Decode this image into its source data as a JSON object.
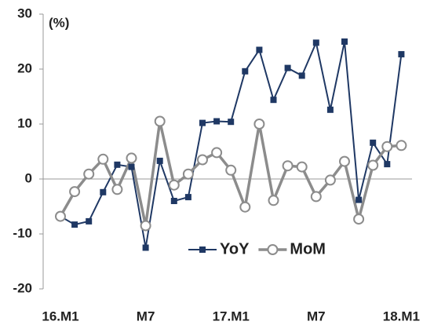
{
  "chart_data": {
    "type": "line",
    "annotation": "(%)",
    "categories": [
      "16.M1",
      null,
      null,
      null,
      null,
      null,
      "M7",
      null,
      null,
      null,
      null,
      null,
      "17.M1",
      null,
      null,
      null,
      null,
      null,
      "M7",
      null,
      null,
      null,
      null,
      null,
      "18.M1"
    ],
    "series": [
      {
        "name": "YoY",
        "color": "#1f3864",
        "marker": "square",
        "values": [
          -6.8,
          -8.3,
          -7.7,
          -2.4,
          2.6,
          2.2,
          -12.5,
          3.3,
          -4,
          -3.3,
          10.2,
          10.5,
          10.4,
          19.6,
          23.5,
          14.4,
          20.2,
          18.8,
          24.8,
          12.6,
          25,
          -3.8,
          6.6,
          2.7,
          22.7
        ]
      },
      {
        "name": "MoM",
        "color": "#8c8c8c",
        "marker": "circle",
        "values": [
          -6.8,
          -2.3,
          0.9,
          3.6,
          -1.9,
          3.8,
          -8.5,
          10.5,
          -1.1,
          0.9,
          3.5,
          4.8,
          1.6,
          -5.1,
          10,
          -3.9,
          2.4,
          2.2,
          -3.2,
          -0.2,
          3.2,
          -7.3,
          2.5,
          5.9,
          6.1
        ]
      }
    ],
    "ylim": [
      -20,
      30
    ],
    "yticks": [
      -20,
      -10,
      0,
      10,
      20,
      30
    ],
    "legend": "bottom"
  }
}
